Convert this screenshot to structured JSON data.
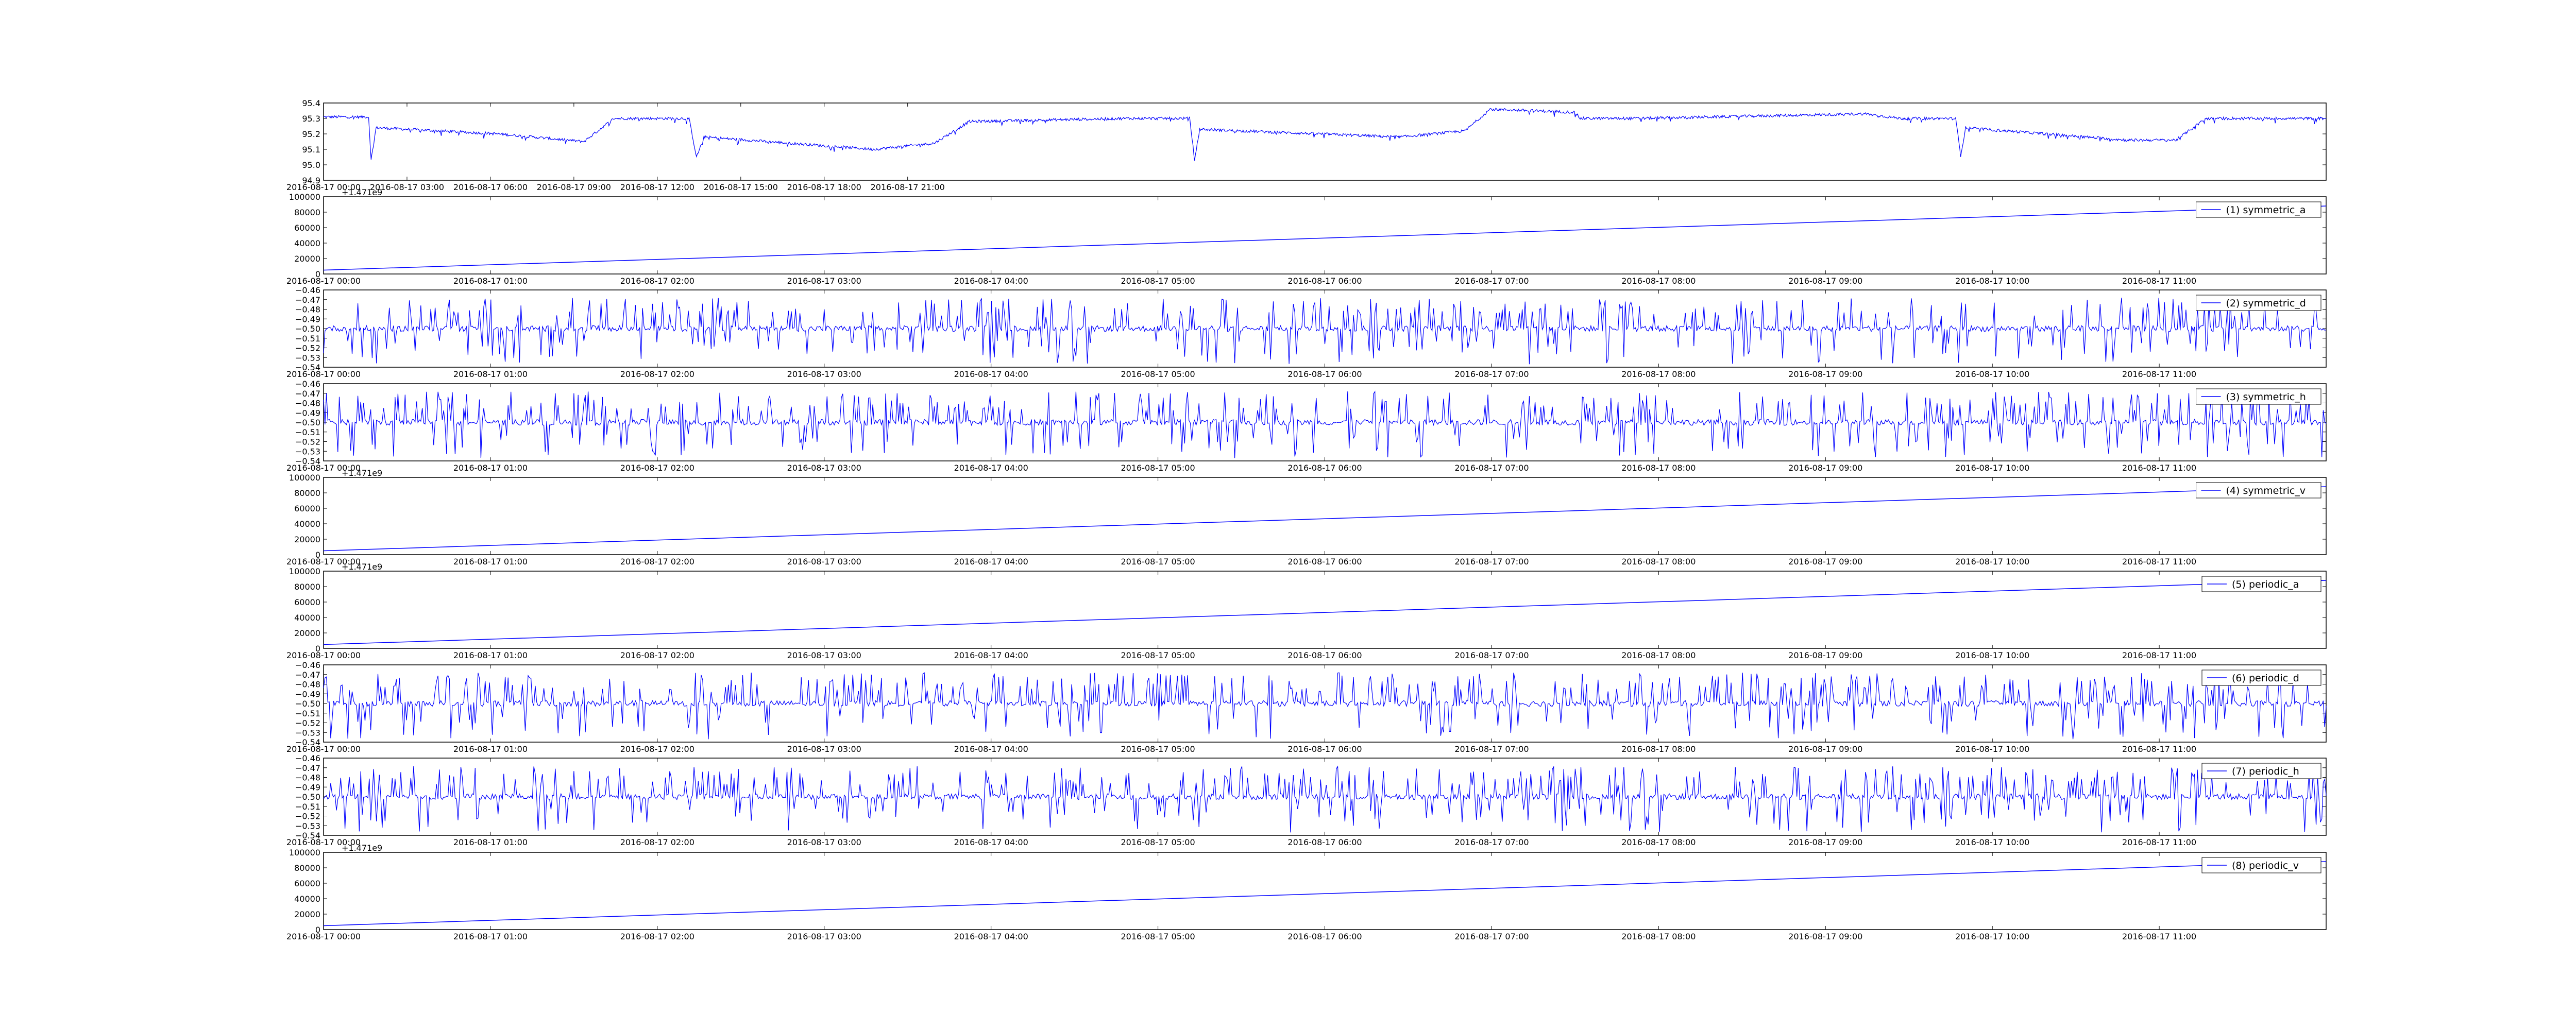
{
  "chart_data": [
    {
      "type": "line",
      "title": "",
      "series": [
        {
          "shape": "temp_trace",
          "color": "#0000ff"
        }
      ],
      "ylim": [
        94.9,
        95.4
      ],
      "y_ticks": [
        "94.9",
        "95.0",
        "95.1",
        "95.2",
        "95.3",
        "95.4"
      ],
      "x_ticks": [
        "2016-08-17 00:00",
        "2016-08-17 03:00",
        "2016-08-17 06:00",
        "2016-08-17 09:00",
        "2016-08-17 12:00",
        "2016-08-17 15:00",
        "2016-08-17 18:00",
        "2016-08-17 21:00"
      ],
      "x_range_hours": [
        0,
        24
      ],
      "x_tick_span": 24
    },
    {
      "type": "line",
      "series": [
        {
          "name": "(1) symmetric_a",
          "shape": "linear",
          "start": 5000,
          "end": 88000,
          "color": "#0000ff"
        }
      ],
      "ylim": [
        0,
        100000
      ],
      "y_ticks": [
        "0",
        "20000",
        "40000",
        "60000",
        "80000",
        "100000"
      ],
      "offset_text": "+1.471e9",
      "legend_position": "top-right",
      "x_ticks": [
        "2016-08-17 00:00",
        "2016-08-17 01:00",
        "2016-08-17 02:00",
        "2016-08-17 03:00",
        "2016-08-17 04:00",
        "2016-08-17 05:00",
        "2016-08-17 06:00",
        "2016-08-17 07:00",
        "2016-08-17 08:00",
        "2016-08-17 09:00",
        "2016-08-17 10:00",
        "2016-08-17 11:00"
      ],
      "x_tick_span": 12
    },
    {
      "type": "line",
      "series": [
        {
          "name": "(2) symmetric_d",
          "shape": "spiky",
          "baseline": -0.5,
          "color": "#0000ff"
        }
      ],
      "ylim": [
        -0.54,
        -0.46
      ],
      "y_ticks": [
        "−0.54",
        "−0.53",
        "−0.52",
        "−0.51",
        "−0.50",
        "−0.49",
        "−0.48",
        "−0.47",
        "−0.46"
      ],
      "legend_position": "top-right",
      "x_ticks": [
        "2016-08-17 00:00",
        "2016-08-17 01:00",
        "2016-08-17 02:00",
        "2016-08-17 03:00",
        "2016-08-17 04:00",
        "2016-08-17 05:00",
        "2016-08-17 06:00",
        "2016-08-17 07:00",
        "2016-08-17 08:00",
        "2016-08-17 09:00",
        "2016-08-17 10:00",
        "2016-08-17 11:00"
      ],
      "x_tick_span": 12
    },
    {
      "type": "line",
      "series": [
        {
          "name": "(3) symmetric_h",
          "shape": "spiky",
          "baseline": -0.5,
          "color": "#0000ff"
        }
      ],
      "ylim": [
        -0.54,
        -0.46
      ],
      "y_ticks": [
        "−0.54",
        "−0.53",
        "−0.52",
        "−0.51",
        "−0.50",
        "−0.49",
        "−0.48",
        "−0.47",
        "−0.46"
      ],
      "legend_position": "top-right",
      "x_ticks": [
        "2016-08-17 00:00",
        "2016-08-17 01:00",
        "2016-08-17 02:00",
        "2016-08-17 03:00",
        "2016-08-17 04:00",
        "2016-08-17 05:00",
        "2016-08-17 06:00",
        "2016-08-17 07:00",
        "2016-08-17 08:00",
        "2016-08-17 09:00",
        "2016-08-17 10:00",
        "2016-08-17 11:00"
      ],
      "x_tick_span": 12
    },
    {
      "type": "line",
      "series": [
        {
          "name": "(4) symmetric_v",
          "shape": "linear",
          "start": 5000,
          "end": 88000,
          "color": "#0000ff"
        }
      ],
      "ylim": [
        0,
        100000
      ],
      "y_ticks": [
        "0",
        "20000",
        "40000",
        "60000",
        "80000",
        "100000"
      ],
      "offset_text": "+1.471e9",
      "legend_position": "top-right",
      "x_ticks": [
        "2016-08-17 00:00",
        "2016-08-17 01:00",
        "2016-08-17 02:00",
        "2016-08-17 03:00",
        "2016-08-17 04:00",
        "2016-08-17 05:00",
        "2016-08-17 06:00",
        "2016-08-17 07:00",
        "2016-08-17 08:00",
        "2016-08-17 09:00",
        "2016-08-17 10:00",
        "2016-08-17 11:00"
      ],
      "x_tick_span": 12
    },
    {
      "type": "line",
      "series": [
        {
          "name": "(5) periodic_a",
          "shape": "linear",
          "start": 5000,
          "end": 88000,
          "color": "#0000ff"
        }
      ],
      "ylim": [
        0,
        100000
      ],
      "y_ticks": [
        "0",
        "20000",
        "40000",
        "60000",
        "80000",
        "100000"
      ],
      "offset_text": "+1.471e9",
      "legend_position": "top-right",
      "x_ticks": [
        "2016-08-17 00:00",
        "2016-08-17 01:00",
        "2016-08-17 02:00",
        "2016-08-17 03:00",
        "2016-08-17 04:00",
        "2016-08-17 05:00",
        "2016-08-17 06:00",
        "2016-08-17 07:00",
        "2016-08-17 08:00",
        "2016-08-17 09:00",
        "2016-08-17 10:00",
        "2016-08-17 11:00"
      ],
      "x_tick_span": 12
    },
    {
      "type": "line",
      "series": [
        {
          "name": "(6) periodic_d",
          "shape": "spiky",
          "baseline": -0.5,
          "color": "#0000ff"
        }
      ],
      "ylim": [
        -0.54,
        -0.46
      ],
      "y_ticks": [
        "−0.54",
        "−0.53",
        "−0.52",
        "−0.51",
        "−0.50",
        "−0.49",
        "−0.48",
        "−0.47",
        "−0.46"
      ],
      "legend_position": "top-right",
      "x_ticks": [
        "2016-08-17 00:00",
        "2016-08-17 01:00",
        "2016-08-17 02:00",
        "2016-08-17 03:00",
        "2016-08-17 04:00",
        "2016-08-17 05:00",
        "2016-08-17 06:00",
        "2016-08-17 07:00",
        "2016-08-17 08:00",
        "2016-08-17 09:00",
        "2016-08-17 10:00",
        "2016-08-17 11:00"
      ],
      "x_tick_span": 12
    },
    {
      "type": "line",
      "series": [
        {
          "name": "(7) periodic_h",
          "shape": "spiky",
          "baseline": -0.5,
          "color": "#0000ff"
        }
      ],
      "ylim": [
        -0.54,
        -0.46
      ],
      "y_ticks": [
        "−0.54",
        "−0.53",
        "−0.52",
        "−0.51",
        "−0.50",
        "−0.49",
        "−0.48",
        "−0.47",
        "−0.46"
      ],
      "legend_position": "top-right",
      "x_ticks": [
        "2016-08-17 00:00",
        "2016-08-17 01:00",
        "2016-08-17 02:00",
        "2016-08-17 03:00",
        "2016-08-17 04:00",
        "2016-08-17 05:00",
        "2016-08-17 06:00",
        "2016-08-17 07:00",
        "2016-08-17 08:00",
        "2016-08-17 09:00",
        "2016-08-17 10:00",
        "2016-08-17 11:00"
      ],
      "x_tick_span": 12
    },
    {
      "type": "line",
      "series": [
        {
          "name": "(8) periodic_v",
          "shape": "linear",
          "start": 5000,
          "end": 88000,
          "color": "#0000ff"
        }
      ],
      "ylim": [
        0,
        100000
      ],
      "y_ticks": [
        "0",
        "20000",
        "40000",
        "60000",
        "80000",
        "100000"
      ],
      "offset_text": "+1.471e9",
      "legend_position": "top-right",
      "x_ticks": [
        "2016-08-17 00:00",
        "2016-08-17 01:00",
        "2016-08-17 02:00",
        "2016-08-17 03:00",
        "2016-08-17 04:00",
        "2016-08-17 05:00",
        "2016-08-17 06:00",
        "2016-08-17 07:00",
        "2016-08-17 08:00",
        "2016-08-17 09:00",
        "2016-08-17 10:00",
        "2016-08-17 11:00"
      ],
      "x_tick_span": 12
    }
  ]
}
